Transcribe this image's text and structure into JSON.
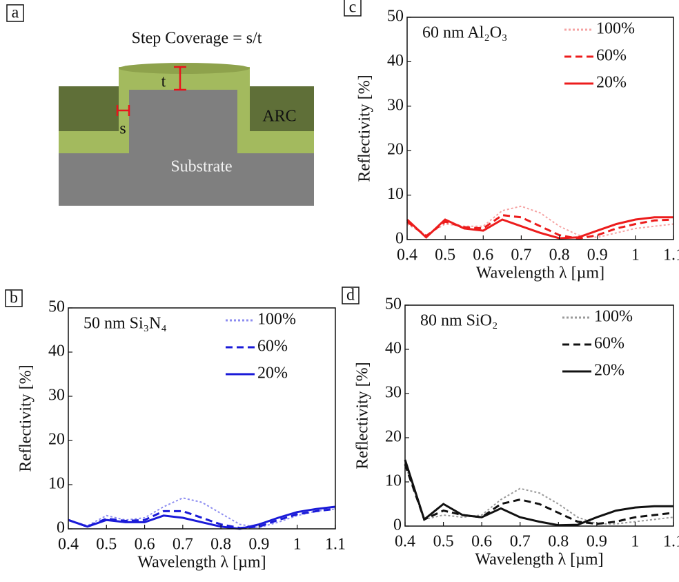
{
  "diagram": {
    "panel": "a",
    "title": "Step Coverage = s/t",
    "labels": {
      "t": "t",
      "s": "s",
      "arc": "ARC",
      "substrate": "Substrate"
    }
  },
  "chart_data": [
    {
      "type": "line",
      "panel": "b",
      "annotation": "50 nm Si₃N₄",
      "xlabel": "Wavelength λ [µm]",
      "ylabel": "Reflectivity [%]",
      "xlim": [
        0.4,
        1.1
      ],
      "ylim": [
        0,
        50
      ],
      "xticks": [
        0.4,
        0.5,
        0.6,
        0.7,
        0.8,
        0.9,
        1,
        1.1
      ],
      "yticks": [
        0,
        10,
        20,
        30,
        40,
        50
      ],
      "x": [
        0.4,
        0.45,
        0.5,
        0.55,
        0.6,
        0.65,
        0.7,
        0.75,
        0.8,
        0.85,
        0.9,
        0.95,
        1.0,
        1.05,
        1.1
      ],
      "series": [
        {
          "name": "100%",
          "color": "#8c8cf0",
          "dash": "dotted",
          "values": [
            2,
            0.7,
            3,
            2,
            2.5,
            5,
            7,
            6,
            3.5,
            1,
            0.3,
            1.5,
            3,
            4,
            4.5
          ]
        },
        {
          "name": "60%",
          "color": "#1a1ad8",
          "dash": "dashed",
          "values": [
            2,
            0.5,
            2.3,
            1.8,
            2,
            4,
            4,
            2.5,
            1,
            0.2,
            0.5,
            2,
            3.3,
            4,
            4.5
          ]
        },
        {
          "name": "20%",
          "color": "#1a1ad8",
          "dash": "solid",
          "values": [
            2,
            0.5,
            2,
            1.5,
            1.5,
            3,
            2.5,
            1.5,
            0.5,
            0,
            1,
            2.5,
            3.8,
            4.5,
            5
          ]
        }
      ]
    },
    {
      "type": "line",
      "panel": "c",
      "annotation": "60 nm Al₂O₃",
      "xlabel": "Wavelength λ [µm]",
      "ylabel": "Reflectivity [%]",
      "xlim": [
        0.4,
        1.1
      ],
      "ylim": [
        0,
        50
      ],
      "xticks": [
        0.4,
        0.5,
        0.6,
        0.7,
        0.8,
        0.9,
        1,
        1.1
      ],
      "yticks": [
        0,
        10,
        20,
        30,
        40,
        50
      ],
      "x": [
        0.4,
        0.45,
        0.5,
        0.55,
        0.6,
        0.65,
        0.7,
        0.75,
        0.8,
        0.85,
        0.9,
        0.95,
        1.0,
        1.05,
        1.1
      ],
      "series": [
        {
          "name": "100%",
          "color": "#f5a3a3",
          "dash": "dotted",
          "values": [
            3.5,
            1,
            3.5,
            3,
            3,
            6.5,
            7.5,
            6,
            3,
            1,
            0.5,
            1.5,
            2.5,
            3,
            3.5
          ]
        },
        {
          "name": "60%",
          "color": "#ec1c1c",
          "dash": "dashed",
          "values": [
            4,
            0.8,
            4,
            2.8,
            2.5,
            5.5,
            5,
            3,
            1,
            0.2,
            1,
            2.5,
            3.5,
            4.3,
            4.5
          ]
        },
        {
          "name": "20%",
          "color": "#ec1c1c",
          "dash": "solid",
          "values": [
            4.5,
            0.5,
            4.5,
            2.5,
            2,
            4.5,
            3,
            1.5,
            0.3,
            0.5,
            2,
            3.5,
            4.5,
            5,
            5
          ]
        }
      ]
    },
    {
      "type": "line",
      "panel": "d",
      "annotation": "80 nm SiO₂",
      "xlabel": "Wavelength λ [µm]",
      "ylabel": "Reflectivity [%]",
      "xlim": [
        0.4,
        1.1
      ],
      "ylim": [
        0,
        50
      ],
      "xticks": [
        0.4,
        0.5,
        0.6,
        0.7,
        0.8,
        0.9,
        1,
        1.1
      ],
      "yticks": [
        0,
        10,
        20,
        30,
        40,
        50
      ],
      "x": [
        0.4,
        0.45,
        0.5,
        0.55,
        0.6,
        0.65,
        0.7,
        0.75,
        0.8,
        0.85,
        0.9,
        0.95,
        1.0,
        1.05,
        1.1
      ],
      "series": [
        {
          "name": "100%",
          "color": "#9a9a9a",
          "dash": "dotted",
          "values": [
            14,
            1.5,
            2.5,
            2,
            2.5,
            6,
            8.5,
            7.5,
            5,
            2,
            0.5,
            0.5,
            1,
            1.5,
            2
          ]
        },
        {
          "name": "60%",
          "color": "#111111",
          "dash": "dashed",
          "values": [
            14,
            1.5,
            3.5,
            2.5,
            2,
            5,
            6,
            5,
            3,
            1,
            0.5,
            1,
            2,
            2.5,
            3
          ]
        },
        {
          "name": "20%",
          "color": "#111111",
          "dash": "solid",
          "values": [
            15,
            1.5,
            5,
            2.5,
            2,
            4,
            2,
            1,
            0.2,
            0.3,
            2,
            3.5,
            4.2,
            4.5,
            4.5
          ]
        }
      ]
    }
  ]
}
